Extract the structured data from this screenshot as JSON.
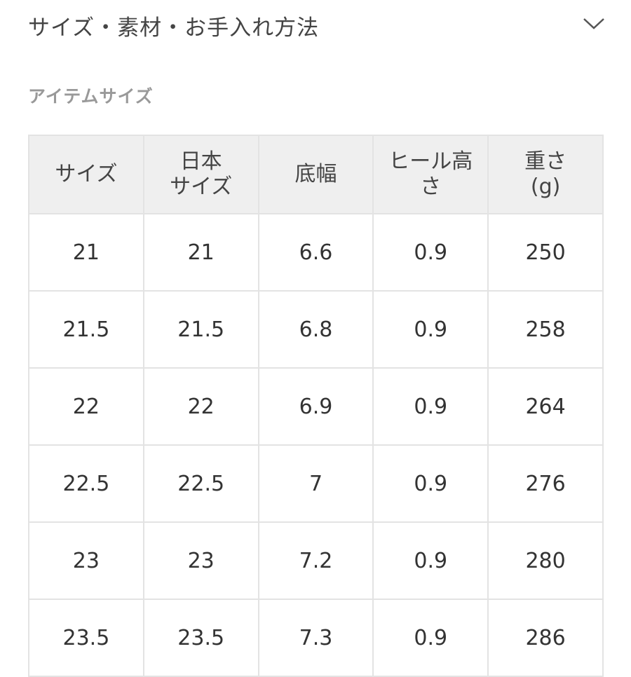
{
  "section": {
    "title": "サイズ・素材・お手入れ方法",
    "toggle_icon": "chevron-down-icon"
  },
  "subtitle": "アイテムサイズ",
  "table": {
    "headers": [
      "サイズ",
      "日本\nサイズ",
      "底幅",
      "ヒール高\nさ",
      "重さ\n(g)"
    ],
    "rows": [
      [
        "21",
        "21",
        "6.6",
        "0.9",
        "250"
      ],
      [
        "21.5",
        "21.5",
        "6.8",
        "0.9",
        "258"
      ],
      [
        "22",
        "22",
        "6.9",
        "0.9",
        "264"
      ],
      [
        "22.5",
        "22.5",
        "7",
        "0.9",
        "276"
      ],
      [
        "23",
        "23",
        "7.2",
        "0.9",
        "280"
      ],
      [
        "23.5",
        "23.5",
        "7.3",
        "0.9",
        "286"
      ]
    ]
  }
}
